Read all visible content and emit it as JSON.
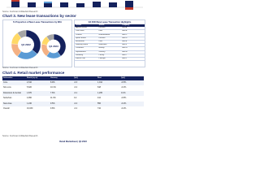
{
  "top_source": "Source: Cushman & Wakefield Research",
  "chart3": {
    "title": "Chart 3. New lease transactions by sector",
    "panel_title": "% Proportion of New Lease Transactions by NFA",
    "donuts": [
      {
        "label": "Q4 2022",
        "values": [
          36,
          24,
          16,
          14,
          10
        ]
      },
      {
        "label": "Q4 2023",
        "values": [
          40,
          20,
          18,
          12,
          10
        ]
      }
    ],
    "highlights": {
      "title": "Q4 2023 New Lease Transaction Highlights",
      "header": [
        "Tenant",
        "Sector",
        "Property"
      ],
      "rows": [
        [
          "Apparel brand",
          "Fashion",
          "Mall A"
        ],
        [
          "Cafe chain",
          "F&B",
          "Mall B"
        ],
        [
          "Cinema",
          "Entertainment",
          "Mall C"
        ],
        [
          "Sports brand",
          "Fashion",
          "Mall D"
        ],
        [
          "Restaurant",
          "F&B",
          "Mall E"
        ],
        [
          "Learning centre",
          "Education",
          "Mall F"
        ],
        [
          "Cosmetics",
          "Beauty",
          "Mall G"
        ],
        [
          "Supermarket",
          "Grocery",
          "Mall H"
        ],
        [
          "Jewellery",
          "Luxury",
          "Mall I"
        ],
        [
          "Fitness club",
          "Lifestyle",
          "Mall J"
        ]
      ]
    },
    "source": "Source: Cushman & Wakefield Research"
  },
  "chart4": {
    "title": "Chart 4. Retail market performance",
    "header": [
      "Submarket",
      "Stock (sq m)",
      "Vacancy",
      "QoQ",
      "Rent",
      "QoQ"
    ],
    "rows": [
      [
        "Core",
        "2,310",
        "8.9%",
        "-0.3",
        "1,012",
        "-0.5%"
      ],
      [
        "Non-core",
        "5,620",
        "10.1%",
        "-0.2",
        "618",
        "-0.4%"
      ],
      [
        "Downtown & Central",
        "1,870",
        "7.6%",
        "-0.1",
        "1,205",
        "0.1%"
      ],
      [
        "Suburban",
        "4,990",
        "11.3%",
        "0.2",
        "412",
        "-0.8%"
      ],
      [
        "New Area",
        "1,240",
        "9.5%",
        "-0.4",
        "556",
        "-0.2%"
      ],
      [
        "Overall",
        "16,030",
        "9.8%",
        "-0.2",
        "742",
        "-0.4%"
      ]
    ],
    "source": "Source: Cushman & Wakefield Research"
  },
  "footer": "Retail Marketbeat | Q4 2023"
}
